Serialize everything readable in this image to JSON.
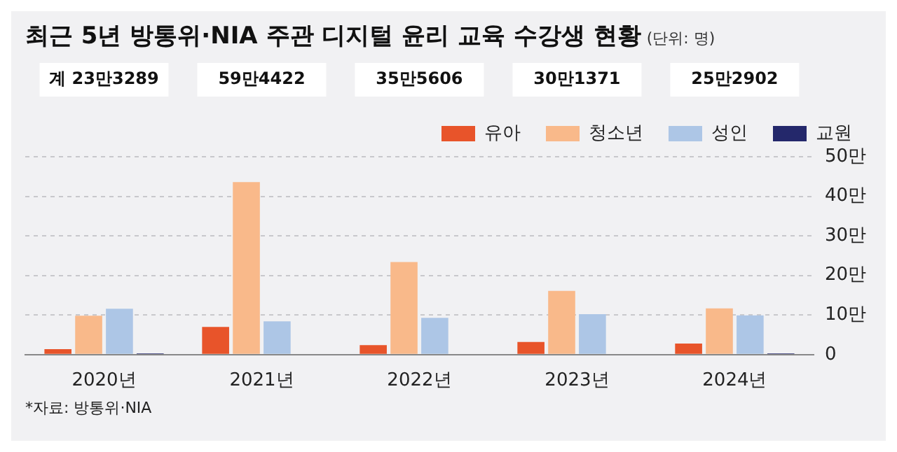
{
  "chart_data": {
    "type": "bar",
    "title": "최근 5년 방통위·NIA 주관 디지털 윤리 교육 수강생 현황",
    "subtitle": "(단위: 명)",
    "categories": [
      "2020년",
      "2021년",
      "2022년",
      "2023년",
      "2024년"
    ],
    "series": [
      {
        "name": "유아",
        "color": "#e8542a",
        "values": [
          1.4,
          7,
          2.4,
          3.2,
          2.8
        ]
      },
      {
        "name": "청소년",
        "color": "#f9b98a",
        "values": [
          9.8,
          43.6,
          23.4,
          16.1,
          11.7
        ]
      },
      {
        "name": "성인",
        "color": "#adc6e6",
        "values": [
          11.6,
          8.4,
          9.3,
          10.2,
          9.9
        ]
      },
      {
        "name": "교원",
        "color": "#24286b",
        "values": [
          0.3,
          0.2,
          0.2,
          0.2,
          0.3
        ]
      }
    ],
    "ylim": [
      0,
      50
    ],
    "yticks": [
      0,
      {
        "value": 10,
        "label": "10만"
      },
      {
        "value": 20,
        "label": "20만"
      },
      {
        "value": 30,
        "label": "30만"
      },
      {
        "value": 40,
        "label": "40만"
      },
      {
        "value": 50,
        "label": "50만"
      }
    ],
    "grid": "y",
    "legend": "top right",
    "annotations": [
      "계 23만3289",
      "59만4422",
      "35만5606",
      "30만1371",
      "25만2902",
      "*자료: 방통위·NIA"
    ]
  }
}
